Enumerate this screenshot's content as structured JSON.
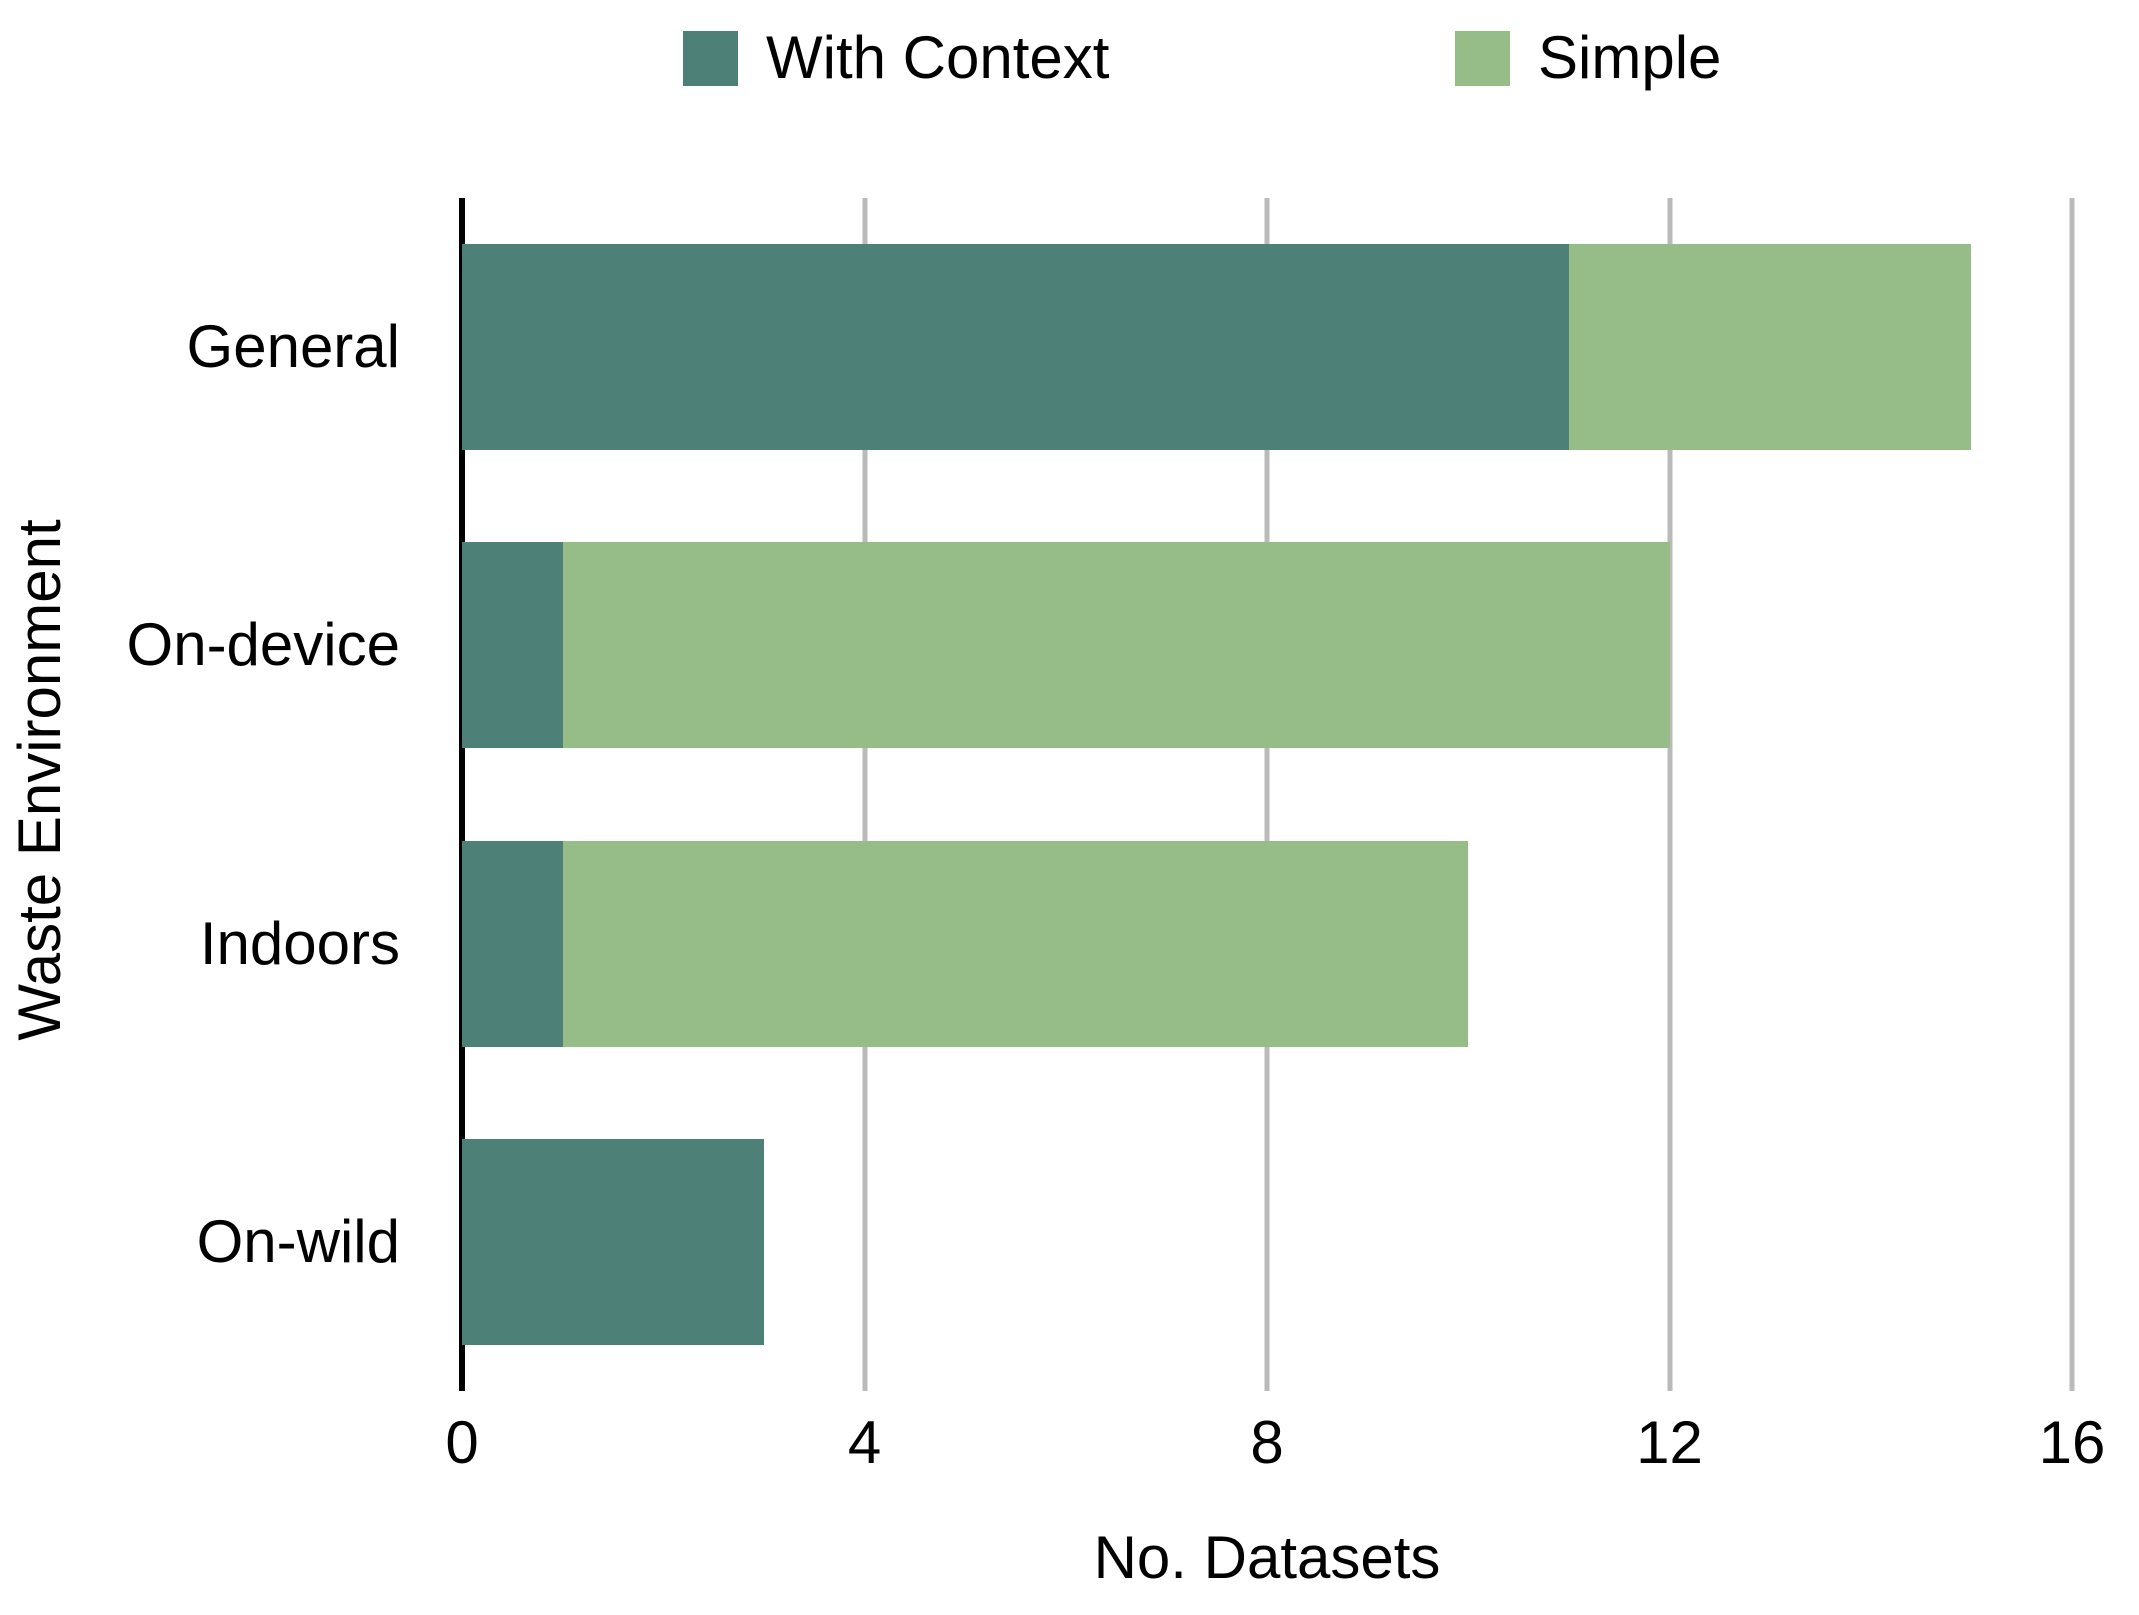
{
  "chart_data": {
    "type": "bar",
    "orientation": "horizontal",
    "stacked": true,
    "xlabel": "No. Datasets",
    "ylabel": "Waste Environment",
    "categories": [
      "General",
      "On-device",
      "Indoors",
      "On-wild"
    ],
    "series": [
      {
        "name": "With Context",
        "color": "#4d8077",
        "values": [
          11,
          1,
          1,
          3
        ]
      },
      {
        "name": "Simple",
        "color": "#96bc88",
        "values": [
          4,
          11,
          9,
          0
        ]
      }
    ],
    "totals": [
      15,
      12,
      10,
      3
    ],
    "xlim": [
      0,
      16
    ],
    "xticks": [
      0,
      4,
      8,
      12,
      16
    ],
    "grid": "vertical",
    "gridline_color": "#bababa",
    "axis_line_color": "#000000",
    "legend_position": "top",
    "legend": [
      {
        "label": "With Context",
        "color": "#4d8077"
      },
      {
        "label": "Simple",
        "color": "#96bc88"
      }
    ]
  }
}
